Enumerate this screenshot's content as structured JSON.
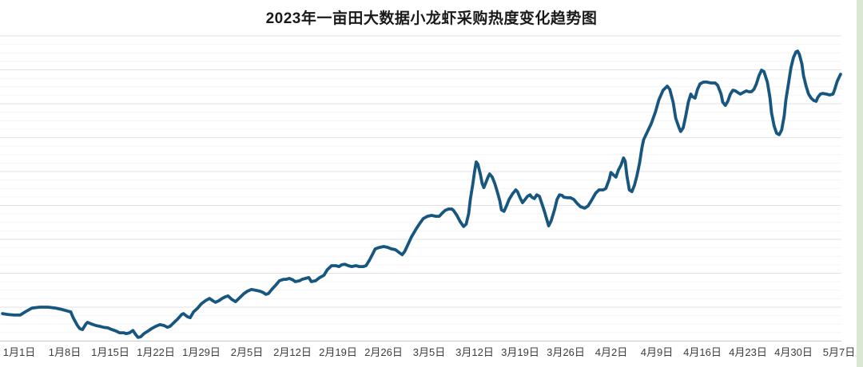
{
  "chart": {
    "title": "2023年一亩田大数据小龙虾采购热度变化趋势图"
  },
  "chart_data": {
    "type": "line",
    "title": "2023年一亩田大数据小龙虾采购热度变化趋势图",
    "xlabel": "",
    "ylabel": "",
    "x_tick_labels": [
      "1月1日",
      "1月8日",
      "1月15日",
      "1月22日",
      "1月29日",
      "2月5日",
      "2月12日",
      "2月19日",
      "2月26日",
      "3月5日",
      "3月12日",
      "3月19日",
      "3月26日",
      "4月2日",
      "4月9日",
      "4月16日",
      "4月23日",
      "4月30日",
      "5月7日"
    ],
    "y_tick_labels": [],
    "ylim": [
      0,
      100
    ],
    "y_unit": "relative procurement heat (no numeric y-axis shown in chart)",
    "x_unit": "percent of x-axis span (Jan 1 to ~May 7, 2023)",
    "grid": "horizontal gridlines only, minor + major",
    "legend": "none",
    "series": [
      {
        "name": "小龙虾采购热度",
        "color": "#16567f",
        "points": [
          [
            0.3,
            9.6
          ],
          [
            0.9,
            9.3
          ],
          [
            1.7,
            9.1
          ],
          [
            2.4,
            9.1
          ],
          [
            3.0,
            10.2
          ],
          [
            3.8,
            11.5
          ],
          [
            4.7,
            11.8
          ],
          [
            5.7,
            11.8
          ],
          [
            6.6,
            11.5
          ],
          [
            7.4,
            11.0
          ],
          [
            8.1,
            10.4
          ],
          [
            8.4,
            10.2
          ],
          [
            8.7,
            8.2
          ],
          [
            9.2,
            5.5
          ],
          [
            9.5,
            4.4
          ],
          [
            9.8,
            4.1
          ],
          [
            10.2,
            6.0
          ],
          [
            10.4,
            6.6
          ],
          [
            10.9,
            6.0
          ],
          [
            11.4,
            5.5
          ],
          [
            11.9,
            5.2
          ],
          [
            12.3,
            4.9
          ],
          [
            12.8,
            4.7
          ],
          [
            13.3,
            4.1
          ],
          [
            13.8,
            3.6
          ],
          [
            14.2,
            3.0
          ],
          [
            14.7,
            3.0
          ],
          [
            15.0,
            2.7
          ],
          [
            15.4,
            3.0
          ],
          [
            15.8,
            3.8
          ],
          [
            16.1,
            2.5
          ],
          [
            16.4,
            1.4
          ],
          [
            16.7,
            1.6
          ],
          [
            17.1,
            2.7
          ],
          [
            17.6,
            3.6
          ],
          [
            18.0,
            4.4
          ],
          [
            18.5,
            5.2
          ],
          [
            19.0,
            5.8
          ],
          [
            19.5,
            5.5
          ],
          [
            19.9,
            4.9
          ],
          [
            20.2,
            5.2
          ],
          [
            20.7,
            6.6
          ],
          [
            21.1,
            7.7
          ],
          [
            21.6,
            9.3
          ],
          [
            21.8,
            9.6
          ],
          [
            22.3,
            8.5
          ],
          [
            22.6,
            8.2
          ],
          [
            23.0,
            10.2
          ],
          [
            23.5,
            11.5
          ],
          [
            23.9,
            12.9
          ],
          [
            24.4,
            14.0
          ],
          [
            24.9,
            14.8
          ],
          [
            25.3,
            14.0
          ],
          [
            25.6,
            13.5
          ],
          [
            26.0,
            14.0
          ],
          [
            26.4,
            14.8
          ],
          [
            26.8,
            15.4
          ],
          [
            27.1,
            15.7
          ],
          [
            27.5,
            14.6
          ],
          [
            28.0,
            13.7
          ],
          [
            28.5,
            15.1
          ],
          [
            29.0,
            16.5
          ],
          [
            29.4,
            17.3
          ],
          [
            29.9,
            17.9
          ],
          [
            30.4,
            17.6
          ],
          [
            30.9,
            17.3
          ],
          [
            31.3,
            16.8
          ],
          [
            31.6,
            16.2
          ],
          [
            31.9,
            16.5
          ],
          [
            32.3,
            17.9
          ],
          [
            32.8,
            19.5
          ],
          [
            33.2,
            20.9
          ],
          [
            33.7,
            21.4
          ],
          [
            34.0,
            21.4
          ],
          [
            34.4,
            21.7
          ],
          [
            34.8,
            21.2
          ],
          [
            35.1,
            20.6
          ],
          [
            35.6,
            20.9
          ],
          [
            35.9,
            21.4
          ],
          [
            36.3,
            21.7
          ],
          [
            36.7,
            22.0
          ],
          [
            37.0,
            20.6
          ],
          [
            37.5,
            20.9
          ],
          [
            38.0,
            22.0
          ],
          [
            38.5,
            22.8
          ],
          [
            38.9,
            24.7
          ],
          [
            39.4,
            26.1
          ],
          [
            39.9,
            26.1
          ],
          [
            40.3,
            25.8
          ],
          [
            40.6,
            26.4
          ],
          [
            41.0,
            26.6
          ],
          [
            41.4,
            26.1
          ],
          [
            41.8,
            25.8
          ],
          [
            42.3,
            26.1
          ],
          [
            42.7,
            25.8
          ],
          [
            43.2,
            25.8
          ],
          [
            43.5,
            26.1
          ],
          [
            43.9,
            28.0
          ],
          [
            44.3,
            30.2
          ],
          [
            44.6,
            31.9
          ],
          [
            45.1,
            32.4
          ],
          [
            45.6,
            32.7
          ],
          [
            46.1,
            32.4
          ],
          [
            46.5,
            31.9
          ],
          [
            47.0,
            31.6
          ],
          [
            47.5,
            30.5
          ],
          [
            47.8,
            29.9
          ],
          [
            48.1,
            31.0
          ],
          [
            48.5,
            33.5
          ],
          [
            48.9,
            36.0
          ],
          [
            49.4,
            38.5
          ],
          [
            49.9,
            40.7
          ],
          [
            50.3,
            42.3
          ],
          [
            50.8,
            43.1
          ],
          [
            51.3,
            43.4
          ],
          [
            51.8,
            43.1
          ],
          [
            52.2,
            43.1
          ],
          [
            52.5,
            44.0
          ],
          [
            52.9,
            45.1
          ],
          [
            53.3,
            45.6
          ],
          [
            53.7,
            45.6
          ],
          [
            53.9,
            45.1
          ],
          [
            54.3,
            43.4
          ],
          [
            54.7,
            41.2
          ],
          [
            55.1,
            39.6
          ],
          [
            55.4,
            40.4
          ],
          [
            55.7,
            44.0
          ],
          [
            55.9,
            48.9
          ],
          [
            56.2,
            54.4
          ],
          [
            56.4,
            58.5
          ],
          [
            56.6,
            61.8
          ],
          [
            56.8,
            61.0
          ],
          [
            57.1,
            57.4
          ],
          [
            57.3,
            54.4
          ],
          [
            57.5,
            53.0
          ],
          [
            57.7,
            54.4
          ],
          [
            58.0,
            56.6
          ],
          [
            58.2,
            57.7
          ],
          [
            58.5,
            56.6
          ],
          [
            58.8,
            54.4
          ],
          [
            59.1,
            51.6
          ],
          [
            59.4,
            48.4
          ],
          [
            59.6,
            45.3
          ],
          [
            59.9,
            44.8
          ],
          [
            60.2,
            46.7
          ],
          [
            60.5,
            48.9
          ],
          [
            60.9,
            50.8
          ],
          [
            61.3,
            52.2
          ],
          [
            61.5,
            51.6
          ],
          [
            61.8,
            49.5
          ],
          [
            62.1,
            47.8
          ],
          [
            62.4,
            48.9
          ],
          [
            62.7,
            50.0
          ],
          [
            63.0,
            50.5
          ],
          [
            63.2,
            49.7
          ],
          [
            63.5,
            49.2
          ],
          [
            63.8,
            50.5
          ],
          [
            64.1,
            50.0
          ],
          [
            64.4,
            47.5
          ],
          [
            64.7,
            44.8
          ],
          [
            65.0,
            41.8
          ],
          [
            65.2,
            39.8
          ],
          [
            65.5,
            41.5
          ],
          [
            65.9,
            45.3
          ],
          [
            66.2,
            48.9
          ],
          [
            66.5,
            50.5
          ],
          [
            66.8,
            50.3
          ],
          [
            67.0,
            49.7
          ],
          [
            67.4,
            49.5
          ],
          [
            67.8,
            49.5
          ],
          [
            68.2,
            48.9
          ],
          [
            68.6,
            47.5
          ],
          [
            69.0,
            46.4
          ],
          [
            69.5,
            45.9
          ],
          [
            69.9,
            46.7
          ],
          [
            70.3,
            48.6
          ],
          [
            70.8,
            51.1
          ],
          [
            71.2,
            52.2
          ],
          [
            71.7,
            52.2
          ],
          [
            72.0,
            52.7
          ],
          [
            72.4,
            55.8
          ],
          [
            72.6,
            58.2
          ],
          [
            72.9,
            57.4
          ],
          [
            73.2,
            56.6
          ],
          [
            73.5,
            59.1
          ],
          [
            73.8,
            60.7
          ],
          [
            74.1,
            63.2
          ],
          [
            74.3,
            62.1
          ],
          [
            74.5,
            57.1
          ],
          [
            74.8,
            52.2
          ],
          [
            75.1,
            51.6
          ],
          [
            75.4,
            53.8
          ],
          [
            75.7,
            57.1
          ],
          [
            76.0,
            61.3
          ],
          [
            76.3,
            66.8
          ],
          [
            76.5,
            69.5
          ],
          [
            76.9,
            72.0
          ],
          [
            77.4,
            75.0
          ],
          [
            77.9,
            79.1
          ],
          [
            78.3,
            83.2
          ],
          [
            78.8,
            86.5
          ],
          [
            79.3,
            87.9
          ],
          [
            79.6,
            86.8
          ],
          [
            80.0,
            82.4
          ],
          [
            80.3,
            76.9
          ],
          [
            80.7,
            73.6
          ],
          [
            80.9,
            72.3
          ],
          [
            81.2,
            73.6
          ],
          [
            81.5,
            77.7
          ],
          [
            81.8,
            82.4
          ],
          [
            82.1,
            85.2
          ],
          [
            82.3,
            84.3
          ],
          [
            82.6,
            83.8
          ],
          [
            82.9,
            86.8
          ],
          [
            83.2,
            88.7
          ],
          [
            83.6,
            89.3
          ],
          [
            84.0,
            89.3
          ],
          [
            84.5,
            89.0
          ],
          [
            85.0,
            89.0
          ],
          [
            85.3,
            88.2
          ],
          [
            85.7,
            85.2
          ],
          [
            85.9,
            82.4
          ],
          [
            86.2,
            81.3
          ],
          [
            86.5,
            82.7
          ],
          [
            86.8,
            85.2
          ],
          [
            87.1,
            86.5
          ],
          [
            87.4,
            86.3
          ],
          [
            87.7,
            85.7
          ],
          [
            88.0,
            85.2
          ],
          [
            88.3,
            85.7
          ],
          [
            88.7,
            86.3
          ],
          [
            89.0,
            86.0
          ],
          [
            89.3,
            86.0
          ],
          [
            89.6,
            86.8
          ],
          [
            89.9,
            88.7
          ],
          [
            90.2,
            91.5
          ],
          [
            90.5,
            93.4
          ],
          [
            90.8,
            92.9
          ],
          [
            91.2,
            89.3
          ],
          [
            91.5,
            84.1
          ],
          [
            91.7,
            78.6
          ],
          [
            92.0,
            74.2
          ],
          [
            92.3,
            71.7
          ],
          [
            92.6,
            71.2
          ],
          [
            92.9,
            72.8
          ],
          [
            93.2,
            77.7
          ],
          [
            93.4,
            83.2
          ],
          [
            93.7,
            88.7
          ],
          [
            94.0,
            94.2
          ],
          [
            94.3,
            97.8
          ],
          [
            94.6,
            99.7
          ],
          [
            94.8,
            100.0
          ],
          [
            95.0,
            98.9
          ],
          [
            95.3,
            95.6
          ],
          [
            95.5,
            91.5
          ],
          [
            95.8,
            87.9
          ],
          [
            96.1,
            85.2
          ],
          [
            96.4,
            83.8
          ],
          [
            96.7,
            83.0
          ],
          [
            97.0,
            82.7
          ],
          [
            97.2,
            84.1
          ],
          [
            97.5,
            85.2
          ],
          [
            97.8,
            85.4
          ],
          [
            98.2,
            85.2
          ],
          [
            98.6,
            84.9
          ],
          [
            99.0,
            85.2
          ],
          [
            99.2,
            86.8
          ],
          [
            99.5,
            89.6
          ],
          [
            99.9,
            92.0
          ]
        ]
      }
    ]
  },
  "colors": {
    "line": "#16567f",
    "grid_major": "#e2e2e2",
    "grid_minor": "#f4f4f4",
    "axis_line": "#c8c8c8",
    "page_edge_green": "#d9e7d3",
    "title_text": "#1a1a1a",
    "tick_text": "#3c3c3c",
    "background": "#ffffff"
  }
}
